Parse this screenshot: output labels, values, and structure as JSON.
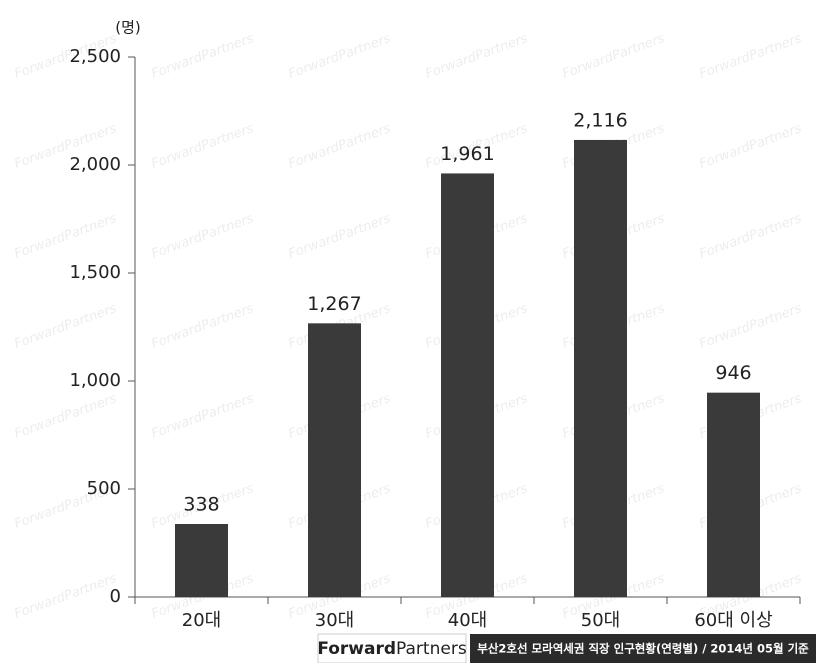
{
  "chart_data": {
    "type": "bar",
    "unit_label": "(명)",
    "categories": [
      "20대",
      "30대",
      "40대",
      "50대",
      "60대 이상"
    ],
    "values": [
      338,
      1267,
      1961,
      2116,
      946
    ],
    "value_labels": [
      "338",
      "1,267",
      "1,961",
      "2,116",
      "946"
    ],
    "color": "#3a3a3a",
    "ylim": [
      0,
      2500
    ],
    "yticks": [
      0,
      500,
      {
        "value": 1000,
        "label": "1,000"
      },
      {
        "value": 1500,
        "label": "1,500"
      },
      {
        "value": 2000,
        "label": "2,000"
      },
      {
        "value": 2500,
        "label": "2,500"
      }
    ],
    "grid": false
  },
  "watermark": "ForwardPartners",
  "footer": {
    "brand_bold": "Forward",
    "brand_light": "Partners",
    "caption": "부산2호선 모라역세권 직장 인구현황(연령별) / 2014년 05월 기준"
  }
}
